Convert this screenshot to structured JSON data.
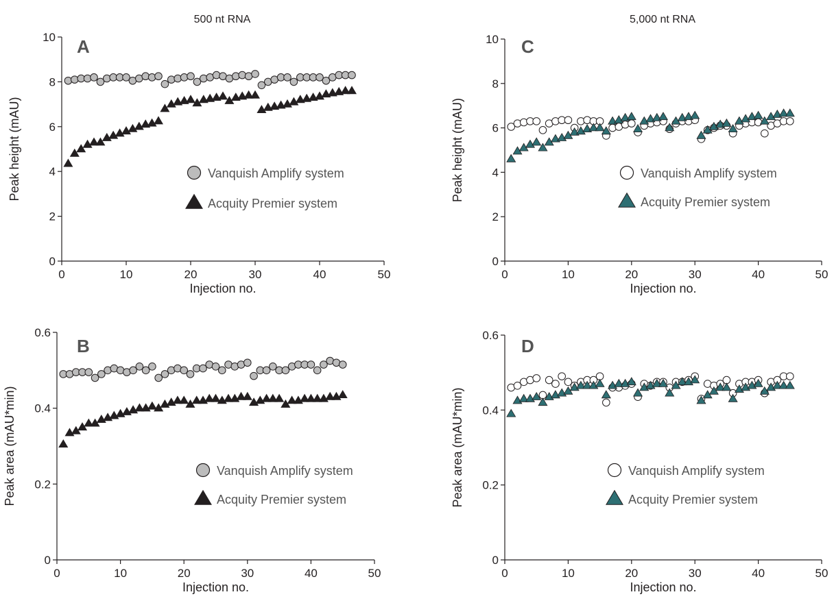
{
  "column_titles": [
    "500 nt RNA",
    "5,000 nt RNA"
  ],
  "chart_data": [
    {
      "panel": "A",
      "type": "scatter",
      "title": "500 nt RNA",
      "xlabel": "Injection no.",
      "ylabel": "Peak height (mAU)",
      "xlim": [
        0,
        50
      ],
      "ylim": [
        0,
        10
      ],
      "xticks": [
        0,
        10,
        20,
        30,
        40,
        50
      ],
      "yticks": [
        0,
        2,
        4,
        6,
        8,
        10
      ],
      "ytick_labels": [
        "0",
        "2",
        "4",
        "6",
        "8",
        "10"
      ],
      "legend_position": "center-right",
      "grid": false,
      "x": [
        1,
        2,
        3,
        4,
        5,
        6,
        7,
        8,
        9,
        10,
        11,
        12,
        13,
        14,
        15,
        16,
        17,
        18,
        19,
        20,
        21,
        22,
        23,
        24,
        25,
        26,
        27,
        28,
        29,
        30,
        31,
        32,
        33,
        34,
        35,
        36,
        37,
        38,
        39,
        40,
        41,
        42,
        43,
        44,
        45
      ],
      "series": [
        {
          "name": "Vanquish Amplify system",
          "marker": "circle",
          "fill": "#bcbcbc",
          "values": [
            8.05,
            8.1,
            8.15,
            8.15,
            8.2,
            8.0,
            8.15,
            8.2,
            8.2,
            8.2,
            8.05,
            8.15,
            8.25,
            8.2,
            8.25,
            7.9,
            8.1,
            8.15,
            8.2,
            8.25,
            8.0,
            8.15,
            8.2,
            8.3,
            8.25,
            8.15,
            8.25,
            8.3,
            8.25,
            8.35,
            7.85,
            8.0,
            8.1,
            8.2,
            8.2,
            8.0,
            8.2,
            8.2,
            8.2,
            8.2,
            8.05,
            8.2,
            8.3,
            8.3,
            8.3
          ]
        },
        {
          "name": "Acquity Premier system",
          "marker": "triangle",
          "fill": "#231f20",
          "values": [
            4.35,
            4.8,
            5.0,
            5.2,
            5.3,
            5.3,
            5.5,
            5.6,
            5.7,
            5.8,
            5.9,
            6.0,
            6.1,
            6.15,
            6.25,
            6.8,
            7.0,
            7.1,
            7.15,
            7.2,
            7.05,
            7.2,
            7.25,
            7.3,
            7.35,
            7.15,
            7.3,
            7.35,
            7.4,
            7.4,
            6.75,
            6.85,
            6.9,
            6.95,
            7.0,
            7.1,
            7.2,
            7.25,
            7.3,
            7.35,
            7.45,
            7.5,
            7.55,
            7.6,
            7.6
          ]
        }
      ]
    },
    {
      "panel": "B",
      "type": "scatter",
      "xlabel": "Injection no.",
      "ylabel": "Peak area (mAU*min)",
      "xlim": [
        0,
        50
      ],
      "ylim": [
        0,
        0.6
      ],
      "xticks": [
        0,
        10,
        20,
        30,
        40,
        50
      ],
      "yticks": [
        0,
        0.2,
        0.4,
        0.6
      ],
      "ytick_labels": [
        "0",
        "0.2",
        "0.4",
        "0.6"
      ],
      "legend_position": "center-right",
      "grid": false,
      "x": [
        1,
        2,
        3,
        4,
        5,
        6,
        7,
        8,
        9,
        10,
        11,
        12,
        13,
        14,
        15,
        16,
        17,
        18,
        19,
        20,
        21,
        22,
        23,
        24,
        25,
        26,
        27,
        28,
        29,
        30,
        31,
        32,
        33,
        34,
        35,
        36,
        37,
        38,
        39,
        40,
        41,
        42,
        43,
        44,
        45
      ],
      "series": [
        {
          "name": "Vanquish Amplify system",
          "marker": "circle",
          "fill": "#bcbcbc",
          "values": [
            0.49,
            0.49,
            0.495,
            0.495,
            0.495,
            0.48,
            0.49,
            0.5,
            0.505,
            0.5,
            0.495,
            0.5,
            0.51,
            0.5,
            0.51,
            0.48,
            0.49,
            0.5,
            0.505,
            0.5,
            0.49,
            0.505,
            0.505,
            0.515,
            0.51,
            0.5,
            0.515,
            0.51,
            0.515,
            0.52,
            0.485,
            0.5,
            0.5,
            0.51,
            0.5,
            0.5,
            0.51,
            0.515,
            0.515,
            0.515,
            0.5,
            0.515,
            0.525,
            0.52,
            0.515
          ]
        },
        {
          "name": "Acquity Premier system",
          "marker": "triangle",
          "fill": "#231f20",
          "values": [
            0.305,
            0.335,
            0.34,
            0.35,
            0.36,
            0.36,
            0.37,
            0.375,
            0.38,
            0.385,
            0.39,
            0.395,
            0.4,
            0.4,
            0.405,
            0.4,
            0.41,
            0.415,
            0.42,
            0.42,
            0.41,
            0.42,
            0.42,
            0.425,
            0.425,
            0.42,
            0.425,
            0.425,
            0.43,
            0.43,
            0.415,
            0.42,
            0.425,
            0.425,
            0.425,
            0.41,
            0.42,
            0.42,
            0.425,
            0.425,
            0.425,
            0.425,
            0.43,
            0.43,
            0.435
          ]
        }
      ]
    },
    {
      "panel": "C",
      "type": "scatter",
      "title": "5,000 nt RNA",
      "xlabel": "Injection no.",
      "ylabel": "Peak height (mAU)",
      "xlim": [
        0,
        50
      ],
      "ylim": [
        0,
        10
      ],
      "xticks": [
        0,
        10,
        20,
        30,
        40,
        50
      ],
      "yticks": [
        0,
        2,
        4,
        6,
        8,
        10
      ],
      "ytick_labels": [
        "0",
        "2",
        "4",
        "6",
        "8",
        "10"
      ],
      "legend_position": "center-right",
      "grid": false,
      "x": [
        1,
        2,
        3,
        4,
        5,
        6,
        7,
        8,
        9,
        10,
        11,
        12,
        13,
        14,
        15,
        16,
        17,
        18,
        19,
        20,
        21,
        22,
        23,
        24,
        25,
        26,
        27,
        28,
        29,
        30,
        31,
        32,
        33,
        34,
        35,
        36,
        37,
        38,
        39,
        40,
        41,
        42,
        43,
        44,
        45
      ],
      "series": [
        {
          "name": "Vanquish Amplify system",
          "marker": "circle",
          "fill": "#ffffff",
          "values": [
            6.05,
            6.2,
            6.25,
            6.3,
            6.3,
            5.9,
            6.2,
            6.3,
            6.35,
            6.35,
            6.0,
            6.3,
            6.35,
            6.3,
            6.3,
            5.65,
            6.0,
            6.05,
            6.15,
            6.2,
            5.8,
            6.1,
            6.2,
            6.25,
            6.3,
            5.95,
            6.2,
            6.3,
            6.3,
            6.35,
            5.5,
            5.9,
            6.0,
            6.1,
            6.1,
            5.75,
            6.1,
            6.2,
            6.25,
            6.25,
            5.75,
            6.1,
            6.2,
            6.3,
            6.3
          ]
        },
        {
          "name": "Acquity Premier system",
          "marker": "triangle",
          "fill": "#2e6f73",
          "values": [
            4.6,
            4.95,
            5.1,
            5.25,
            5.35,
            5.1,
            5.35,
            5.5,
            5.55,
            5.65,
            5.8,
            5.85,
            5.95,
            6.0,
            6.0,
            5.85,
            6.3,
            6.35,
            6.45,
            6.5,
            5.95,
            6.3,
            6.4,
            6.45,
            6.5,
            6.0,
            6.3,
            6.45,
            6.5,
            6.55,
            5.65,
            5.9,
            6.05,
            6.15,
            6.2,
            5.95,
            6.3,
            6.4,
            6.5,
            6.55,
            6.3,
            6.5,
            6.6,
            6.65,
            6.65
          ]
        }
      ]
    },
    {
      "panel": "D",
      "type": "scatter",
      "xlabel": "Injection no.",
      "ylabel": "Peak area (mAU*min)",
      "xlim": [
        0,
        50
      ],
      "ylim": [
        0,
        0.6
      ],
      "xticks": [
        0,
        10,
        20,
        30,
        40,
        50
      ],
      "yticks": [
        0,
        0.2,
        0.4,
        0.6
      ],
      "ytick_labels": [
        "0",
        "0.2",
        "0.4",
        "0.6"
      ],
      "legend_position": "center-right",
      "grid": false,
      "x": [
        1,
        2,
        3,
        4,
        5,
        6,
        7,
        8,
        9,
        10,
        11,
        12,
        13,
        14,
        15,
        16,
        17,
        18,
        19,
        20,
        21,
        22,
        23,
        24,
        25,
        26,
        27,
        28,
        29,
        30,
        31,
        32,
        33,
        34,
        35,
        36,
        37,
        38,
        39,
        40,
        41,
        42,
        43,
        44,
        45
      ],
      "series": [
        {
          "name": "Vanquish Amplify system",
          "marker": "circle",
          "fill": "#ffffff",
          "values": [
            0.46,
            0.465,
            0.475,
            0.48,
            0.485,
            0.44,
            0.48,
            0.47,
            0.49,
            0.475,
            0.465,
            0.475,
            0.48,
            0.48,
            0.49,
            0.42,
            0.46,
            0.46,
            0.465,
            0.47,
            0.435,
            0.47,
            0.465,
            0.475,
            0.475,
            0.46,
            0.475,
            0.475,
            0.48,
            0.49,
            0.43,
            0.47,
            0.465,
            0.47,
            0.48,
            0.445,
            0.47,
            0.475,
            0.475,
            0.48,
            0.445,
            0.475,
            0.48,
            0.49,
            0.49
          ]
        },
        {
          "name": "Acquity Premier system",
          "marker": "triangle",
          "fill": "#2e6f73",
          "values": [
            0.39,
            0.425,
            0.43,
            0.43,
            0.435,
            0.42,
            0.435,
            0.44,
            0.445,
            0.45,
            0.46,
            0.465,
            0.465,
            0.465,
            0.47,
            0.44,
            0.465,
            0.47,
            0.47,
            0.475,
            0.445,
            0.46,
            0.465,
            0.47,
            0.47,
            0.445,
            0.465,
            0.475,
            0.475,
            0.48,
            0.425,
            0.44,
            0.45,
            0.46,
            0.46,
            0.43,
            0.455,
            0.46,
            0.465,
            0.47,
            0.45,
            0.46,
            0.465,
            0.465,
            0.465
          ]
        }
      ]
    }
  ]
}
